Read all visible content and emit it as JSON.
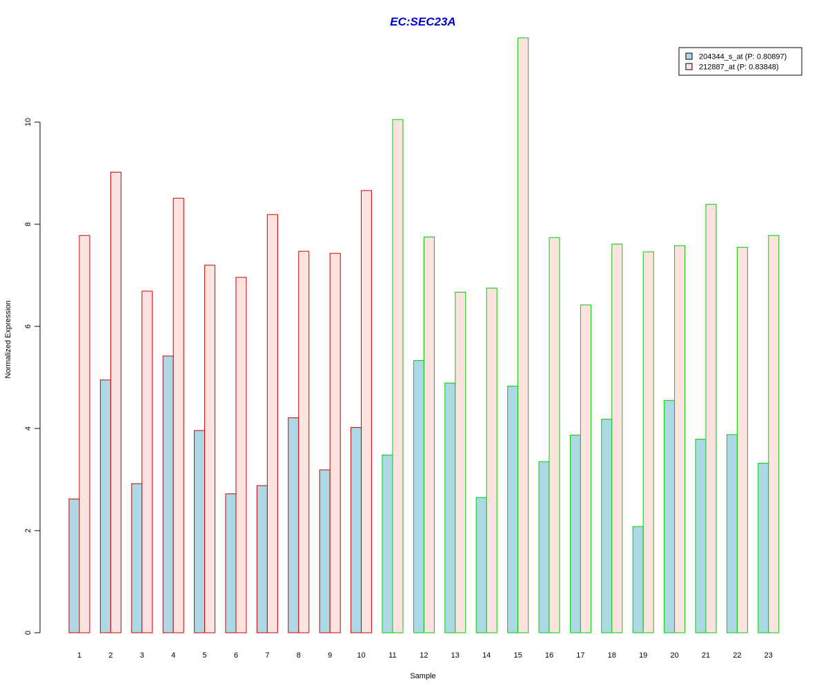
{
  "chart_data": {
    "type": "bar",
    "title": "EC:SEC23A",
    "xlabel": "Sample",
    "ylabel": "Normalized Expression",
    "ylim": [
      0,
      12
    ],
    "yticks": [
      0,
      2,
      4,
      6,
      8,
      10
    ],
    "categories": [
      "1",
      "2",
      "3",
      "4",
      "5",
      "6",
      "7",
      "8",
      "9",
      "10",
      "11",
      "12",
      "13",
      "14",
      "15",
      "16",
      "17",
      "18",
      "19",
      "20",
      "21",
      "22",
      "23"
    ],
    "group_border_colors": [
      "#cc0000",
      "#cc0000",
      "#cc0000",
      "#cc0000",
      "#cc0000",
      "#cc0000",
      "#cc0000",
      "#cc0000",
      "#cc0000",
      "#cc0000",
      "#00cc00",
      "#00cc00",
      "#00cc00",
      "#00cc00",
      "#00cc00",
      "#00cc00",
      "#00cc00",
      "#00cc00",
      "#00cc00",
      "#00cc00",
      "#00cc00",
      "#00cc00",
      "#00cc00"
    ],
    "series": [
      {
        "name": "204344_s_at (P: 0.80897)",
        "fill": "#add8e6",
        "values": [
          2.62,
          4.95,
          2.92,
          5.42,
          3.96,
          2.72,
          2.88,
          4.21,
          3.19,
          4.02,
          3.48,
          5.33,
          4.89,
          2.65,
          4.83,
          3.35,
          3.87,
          4.18,
          2.08,
          4.55,
          3.79,
          3.88,
          3.32
        ]
      },
      {
        "name": "212887_at (P: 0.83848)",
        "fill": "#fde4e1",
        "values": [
          7.78,
          9.02,
          6.69,
          8.51,
          7.2,
          6.96,
          8.19,
          7.47,
          7.43,
          8.66,
          10.05,
          7.75,
          6.67,
          6.75,
          11.65,
          7.74,
          6.42,
          7.61,
          7.46,
          7.58,
          8.39,
          7.55,
          7.78
        ]
      }
    ],
    "legend_position": "top-right"
  }
}
